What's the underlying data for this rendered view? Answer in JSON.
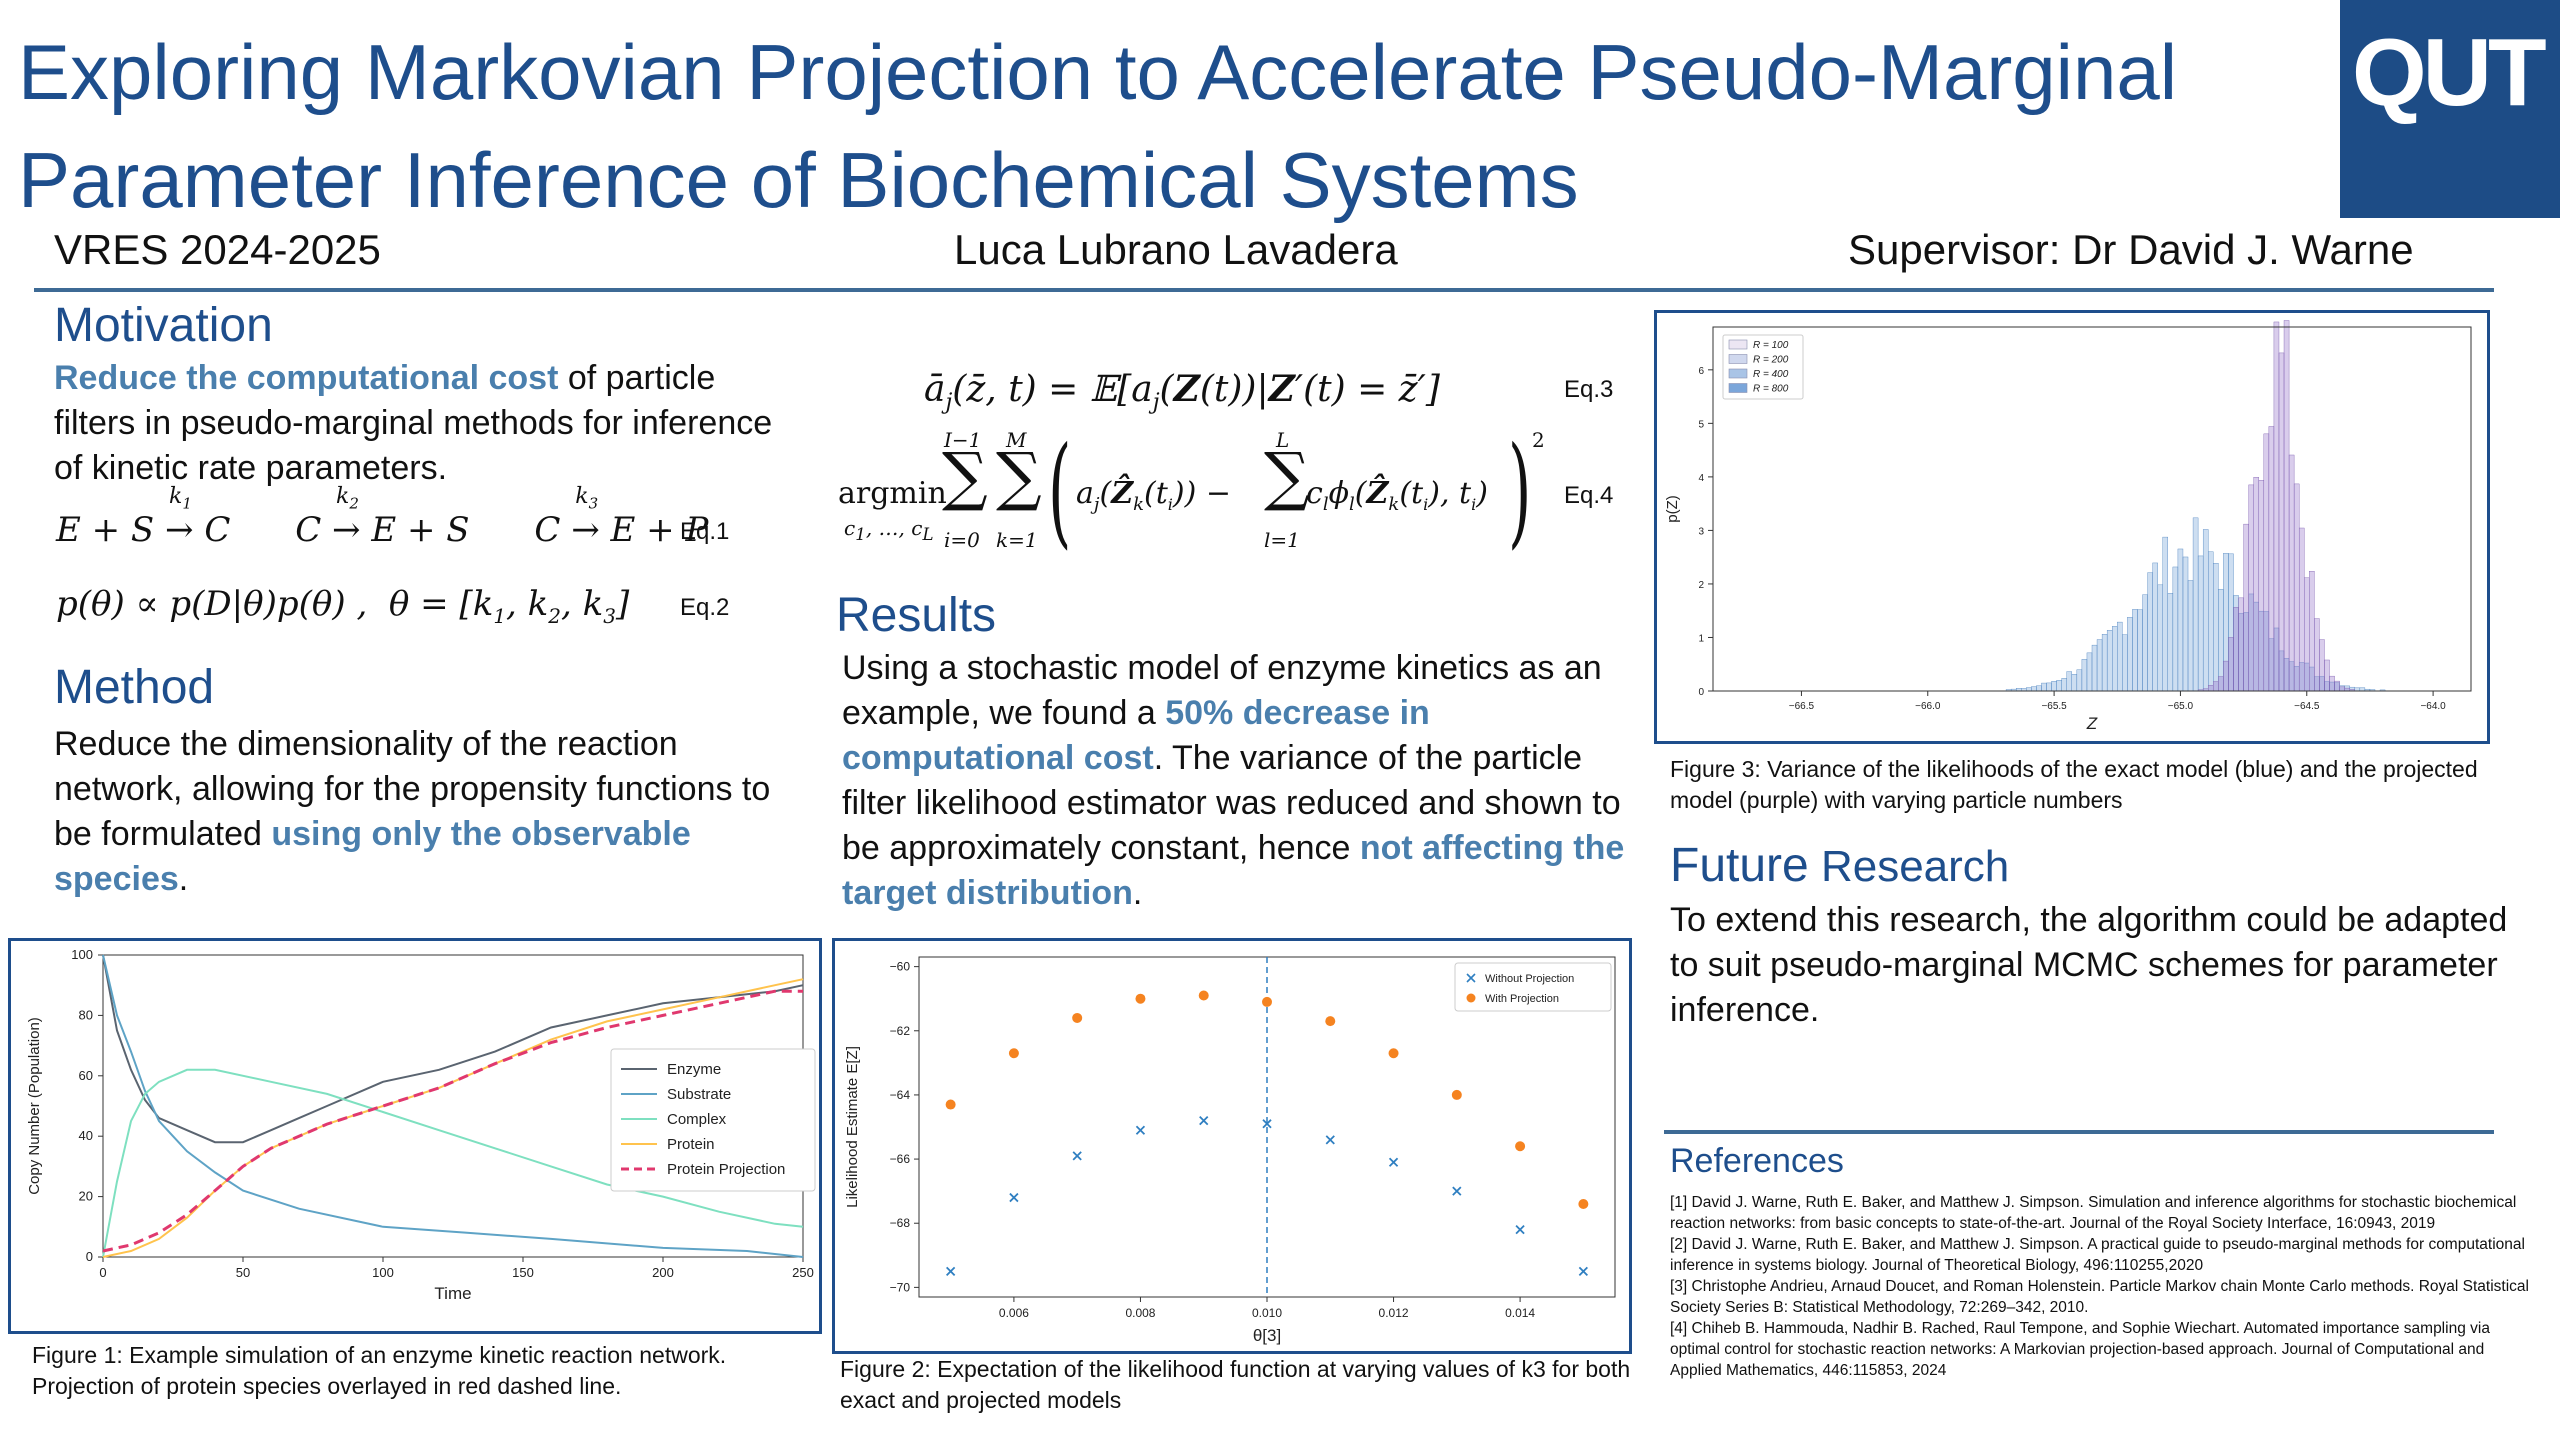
{
  "poster": {
    "title": "Exploring Markovian Projection to Accelerate Pseudo-Marginal Parameter Inference of Biochemical Systems",
    "logo_text": "QUT",
    "program": "VRES 2024-2025",
    "author": "Luca Lubrano Lavadera",
    "supervisor": "Supervisor: Dr David J. Warne"
  },
  "motivation": {
    "heading": "Motivation",
    "highlight": "Reduce the computational cost",
    "text": " of particle filters in pseudo-marginal methods for inference of kinetic rate parameters.",
    "eq1_tag": "Eq.1",
    "eq2_tag": "Eq.2"
  },
  "method": {
    "heading": "Method",
    "text": "Reduce the dimensionality of the reaction network, allowing for the propensity functions to be formulated ",
    "highlight": "using only the observable species",
    "end": "."
  },
  "equations": {
    "eq3_tag": "Eq.3",
    "eq4_tag": "Eq.4"
  },
  "results": {
    "heading": "Results",
    "t1": "Using a stochastic model of enzyme kinetics as an example, we found a ",
    "h1": "50% decrease in computational cost",
    "t2": ". The variance of the particle filter likelihood estimator was reduced and shown to be approximately constant, hence ",
    "h2": "not affecting the target distribution",
    "t3": "."
  },
  "future": {
    "heading_a": "Future",
    "heading_b": " Research",
    "text": "To extend this research, the algorithm could be adapted to suit pseudo-marginal MCMC schemes for parameter inference."
  },
  "references": {
    "heading": "References",
    "items": [
      "[1] David J. Warne, Ruth E. Baker, and Matthew J. Simpson. Simulation and inference algorithms for stochastic biochemical reaction networks: from basic concepts to state-of-the-art. Journal of the Royal Society Interface, 16:0943, 2019",
      "[2] David J. Warne, Ruth E. Baker, and Matthew J. Simpson. A practical guide to pseudo-marginal methods for computational inference in systems biology. Journal of Theoretical Biology, 496:110255,2020",
      "[3] Christophe Andrieu, Arnaud Doucet, and Roman Holenstein. Particle Markov chain Monte Carlo methods. Royal Statistical Society Series B: Statistical Methodology, 72:269–342, 2010.",
      "[4] Chiheb B. Hammouda, Nadhir B. Rached, Raul Tempone, and Sophie Wiechart. Automated importance sampling via optimal control for stochastic reaction networks: A Markovian projection-based approach. Journal of Computational and Applied Mathematics, 446:115853, 2024"
    ]
  },
  "captions": {
    "fig1": "Figure 1: Example simulation of an enzyme kinetic reaction network. Projection of protein species overlayed in red dashed line.",
    "fig2": "Figure 2: Expectation of the likelihood function at varying values of k3 for both exact and projected models",
    "fig3": "Figure 3: Variance of the likelihoods of the exact model (blue) and the projected model (purple) with varying particle numbers"
  },
  "colors": {
    "title_blue": "#1e4e8c",
    "highlight": "#4a7fad"
  },
  "chart_data": [
    {
      "type": "line",
      "xlabel": "Time",
      "ylabel": "Copy Number (Population)",
      "xlim": [
        0,
        250
      ],
      "ylim": [
        0,
        100
      ],
      "xticks": [
        0,
        50,
        100,
        150,
        200,
        250
      ],
      "yticks": [
        0,
        20,
        40,
        60,
        80,
        100
      ],
      "legend_position": "center-right",
      "series": [
        {
          "name": "Enzyme",
          "color": "#5a6470",
          "points": [
            [
              0,
              100
            ],
            [
              5,
              75
            ],
            [
              10,
              62
            ],
            [
              15,
              52
            ],
            [
              20,
              46
            ],
            [
              30,
              42
            ],
            [
              40,
              38
            ],
            [
              50,
              38
            ],
            [
              60,
              42
            ],
            [
              70,
              46
            ],
            [
              80,
              50
            ],
            [
              100,
              58
            ],
            [
              120,
              62
            ],
            [
              140,
              68
            ],
            [
              160,
              76
            ],
            [
              180,
              80
            ],
            [
              200,
              84
            ],
            [
              220,
              86
            ],
            [
              240,
              88
            ],
            [
              250,
              90
            ]
          ]
        },
        {
          "name": "Substrate",
          "color": "#5ea3c6",
          "points": [
            [
              0,
              100
            ],
            [
              5,
              80
            ],
            [
              10,
              68
            ],
            [
              15,
              55
            ],
            [
              20,
              45
            ],
            [
              30,
              35
            ],
            [
              40,
              28
            ],
            [
              50,
              22
            ],
            [
              70,
              16
            ],
            [
              100,
              10
            ],
            [
              130,
              8
            ],
            [
              160,
              6
            ],
            [
              200,
              3
            ],
            [
              230,
              2
            ],
            [
              250,
              0
            ]
          ]
        },
        {
          "name": "Complex",
          "color": "#7ee0c0",
          "points": [
            [
              0,
              0
            ],
            [
              5,
              25
            ],
            [
              10,
              45
            ],
            [
              15,
              54
            ],
            [
              20,
              58
            ],
            [
              30,
              62
            ],
            [
              40,
              62
            ],
            [
              60,
              58
            ],
            [
              80,
              54
            ],
            [
              100,
              48
            ],
            [
              120,
              42
            ],
            [
              140,
              36
            ],
            [
              160,
              30
            ],
            [
              180,
              24
            ],
            [
              200,
              20
            ],
            [
              220,
              15
            ],
            [
              240,
              11
            ],
            [
              250,
              10
            ]
          ]
        },
        {
          "name": "Protein",
          "color": "#ffc34d",
          "points": [
            [
              0,
              0
            ],
            [
              10,
              2
            ],
            [
              20,
              6
            ],
            [
              30,
              13
            ],
            [
              40,
              22
            ],
            [
              50,
              30
            ],
            [
              60,
              36
            ],
            [
              80,
              44
            ],
            [
              100,
              50
            ],
            [
              120,
              56
            ],
            [
              140,
              64
            ],
            [
              160,
              72
            ],
            [
              180,
              78
            ],
            [
              200,
              82
            ],
            [
              220,
              86
            ],
            [
              240,
              90
            ],
            [
              250,
              92
            ]
          ]
        },
        {
          "name": "Protein Projection",
          "color": "#e0386e",
          "points": [
            [
              0,
              2
            ],
            [
              10,
              4
            ],
            [
              20,
              8
            ],
            [
              30,
              14
            ],
            [
              40,
              22
            ],
            [
              50,
              30
            ],
            [
              60,
              36
            ],
            [
              80,
              44
            ],
            [
              100,
              50
            ],
            [
              120,
              56
            ],
            [
              140,
              64
            ],
            [
              160,
              71
            ],
            [
              180,
              76
            ],
            [
              200,
              80
            ],
            [
              220,
              84
            ],
            [
              240,
              88
            ],
            [
              250,
              88
            ]
          ]
        }
      ]
    },
    {
      "type": "scatter",
      "xlabel": "θ[3]",
      "ylabel": "Likelihood Estimate E[Z]",
      "xlim": [
        0.0045,
        0.0155
      ],
      "ylim": [
        -70.3,
        -59.7
      ],
      "xticks": [
        "0.006",
        "0.008",
        "0.010",
        "0.012",
        "0.014"
      ],
      "yticks": [
        -70,
        -68,
        -66,
        -64,
        -62,
        -60
      ],
      "legend_position": "top-right",
      "vline_x": 0.01,
      "series": [
        {
          "name": "Without Projection",
          "color": "#2f7fc1",
          "marker": "x",
          "x": [
            0.005,
            0.006,
            0.007,
            0.008,
            0.009,
            0.01,
            0.011,
            0.012,
            0.013,
            0.014,
            0.015
          ],
          "y": [
            -69.5,
            -67.2,
            -65.9,
            -65.1,
            -64.8,
            -64.9,
            -65.4,
            -66.1,
            -67.0,
            -68.2,
            -69.5
          ]
        },
        {
          "name": "With Projection",
          "color": "#f58320",
          "marker": "o",
          "x": [
            0.005,
            0.006,
            0.007,
            0.008,
            0.009,
            0.01,
            0.011,
            0.012,
            0.013,
            0.014,
            0.015
          ],
          "y": [
            -64.3,
            -62.7,
            -61.6,
            -61.0,
            -60.9,
            -61.1,
            -61.7,
            -62.7,
            -64.0,
            -65.6,
            -67.4
          ]
        }
      ]
    },
    {
      "type": "bar",
      "subtype": "histogram",
      "xlabel": "Z",
      "ylabel": "p(Z)",
      "xlim": [
        -66.85,
        -63.85
      ],
      "ylim": [
        0,
        6.8
      ],
      "xticks": [
        "-66.5",
        "-66.0",
        "-65.5",
        "-65.0",
        "-64.5",
        "-64.0"
      ],
      "yticks": [
        0,
        1,
        2,
        3,
        4,
        5,
        6
      ],
      "legend_position": "top-left",
      "legend": [
        "R = 100",
        "R = 200",
        "R = 400",
        "R = 800"
      ],
      "series": [
        {
          "name": "Exact (blue)",
          "color": "#6fa0d6",
          "center": -64.95,
          "sd": 0.24,
          "peak": 2.6
        },
        {
          "name": "Projected (purple)",
          "color": "#9370c8",
          "center": -64.62,
          "sd": 0.09,
          "peak": 6.2
        }
      ]
    }
  ]
}
